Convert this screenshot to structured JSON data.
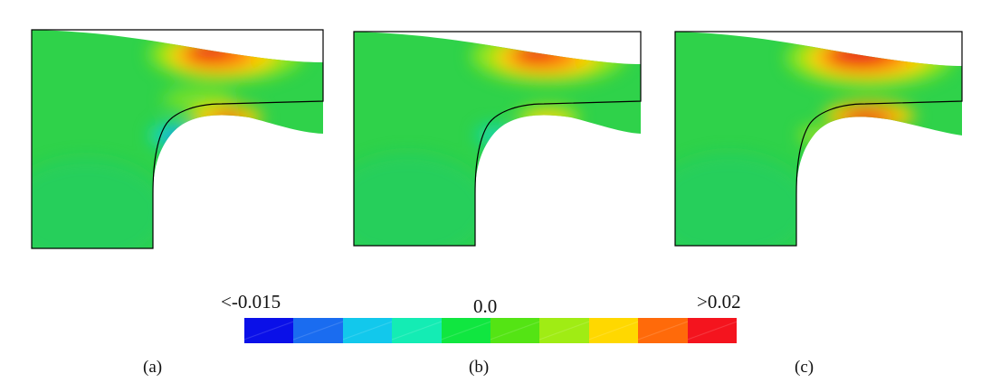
{
  "panels": [
    {
      "id": "a",
      "caption": "(a)",
      "hot_top": 1.0,
      "hot_fillet": 0.9,
      "cold_spot": 1.0
    },
    {
      "id": "b",
      "caption": "(b)",
      "hot_top": 1.0,
      "hot_fillet": 0.55,
      "cold_spot": 0.35
    },
    {
      "id": "c",
      "caption": "(c)",
      "hot_top": 1.15,
      "hot_fillet": 1.0,
      "cold_spot": 0.25
    }
  ],
  "colorbar": {
    "min_label": "<-0.015",
    "mid_label": "0.0",
    "max_label": ">0.02",
    "colors": [
      "#0a10e8",
      "#1a6cf0",
      "#12c8ec",
      "#14ecb4",
      "#10e640",
      "#54e414",
      "#a0ec14",
      "#ffd800",
      "#ff6a0a",
      "#f4141e"
    ]
  },
  "colors": {
    "base_field": "#2fd24a",
    "outline": "#000000"
  }
}
